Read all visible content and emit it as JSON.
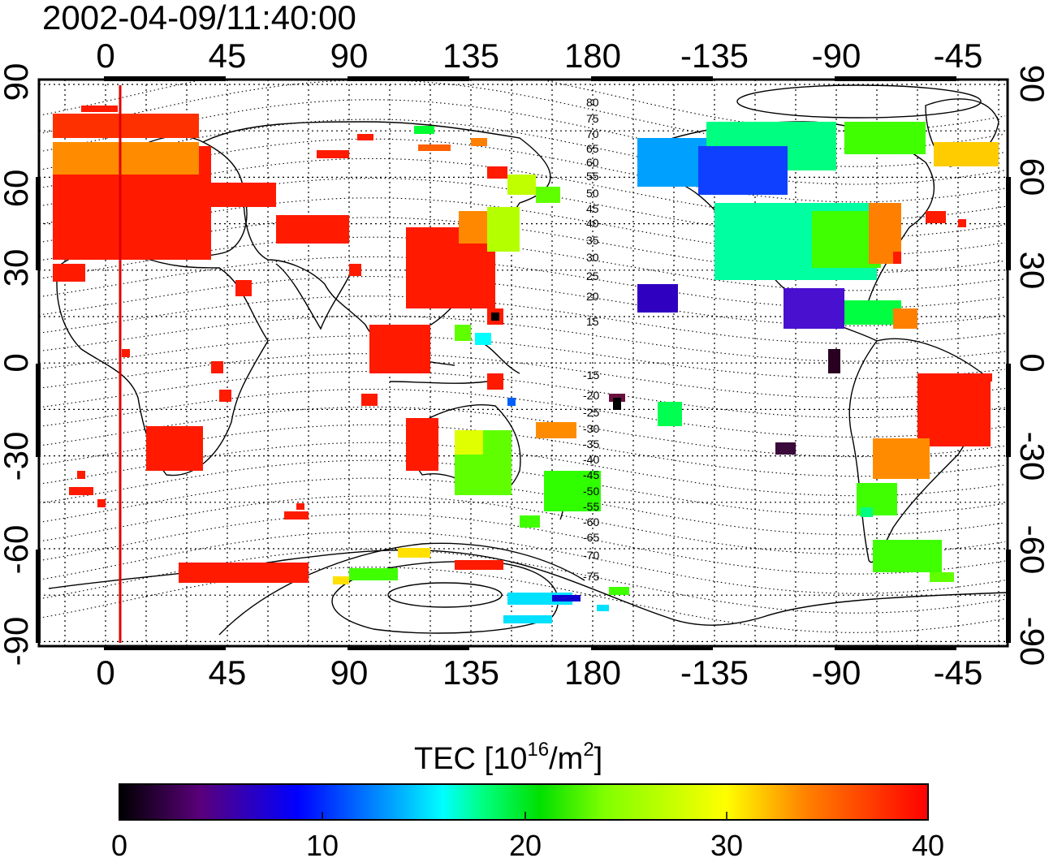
{
  "title": "2002-04-09/11:40:00",
  "map": {
    "top_ticks": [
      "0",
      "45",
      "90",
      "135",
      "180",
      "-135",
      "-90",
      "-45"
    ],
    "bottom_ticks": [
      "0",
      "45",
      "90",
      "135",
      "180",
      "-135",
      "-90",
      "-45"
    ],
    "left_ticks": [
      "90",
      "60",
      "30",
      "0",
      "-30",
      "-60",
      "-90"
    ],
    "right_ticks": [
      "90",
      "60",
      "30",
      "0",
      "-30",
      "-60",
      "-90"
    ],
    "contour_labels_north": [
      "80",
      "75",
      "70",
      "65",
      "60",
      "55",
      "50",
      "45",
      "40",
      "35",
      "30",
      "25",
      "20",
      "15"
    ],
    "contour_labels_south": [
      "-15",
      "-20",
      "-25",
      "-30",
      "-35",
      "-40",
      "-45",
      "-50",
      "-55",
      "-60",
      "-65",
      "-70",
      "-75"
    ],
    "marker_line_color": "#e00000"
  },
  "colorbar": {
    "label_main": "TEC  [10",
    "label_sup1": "16",
    "label_mid": "/m",
    "label_sup2": "2",
    "label_end": "]",
    "ticks": [
      "0",
      "10",
      "20",
      "30",
      "40"
    ],
    "range": [
      0,
      40
    ],
    "colors": [
      "#000000",
      "#5a007a",
      "#0000ff",
      "#00b4ff",
      "#00ffff",
      "#00ff80",
      "#00e000",
      "#80ff00",
      "#ffff00",
      "#ff8000",
      "#ff0000"
    ]
  }
}
